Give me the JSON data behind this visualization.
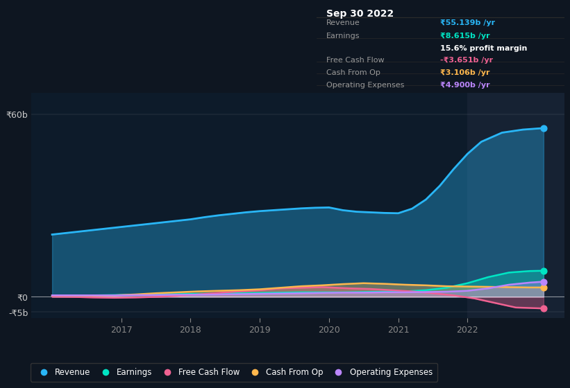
{
  "bg_color": "#0e1621",
  "chart_bg": "#0d1b2a",
  "highlight_bg": "#162233",
  "colors": {
    "revenue": "#29b6f6",
    "earnings": "#00e5c4",
    "fcf": "#f06292",
    "cash_from_op": "#ffb74d",
    "opex": "#bb86fc"
  },
  "tooltip": {
    "date": "Sep 30 2022",
    "revenue_label": "Revenue",
    "revenue_value": "₹55.139b /yr",
    "earnings_label": "Earnings",
    "earnings_value": "₹8.615b /yr",
    "margin_value": "15.6% profit margin",
    "fcf_label": "Free Cash Flow",
    "fcf_value": "-₹3.651b /yr",
    "cashfromop_label": "Cash From Op",
    "cashfromop_value": "₹3.106b /yr",
    "opex_label": "Operating Expenses",
    "opex_value": "₹4.900b /yr"
  },
  "y_label_60": "₹60b",
  "y_label_0": "₹0",
  "y_label_neg5": "-₹5b",
  "x_ticks": [
    2017,
    2018,
    2019,
    2020,
    2021,
    2022
  ],
  "ylim": [
    -7,
    67
  ],
  "xlim_start": 2015.7,
  "xlim_end": 2023.4,
  "legend": [
    {
      "label": "Revenue",
      "color": "#29b6f6"
    },
    {
      "label": "Earnings",
      "color": "#00e5c4"
    },
    {
      "label": "Free Cash Flow",
      "color": "#f06292"
    },
    {
      "label": "Cash From Op",
      "color": "#ffb74d"
    },
    {
      "label": "Operating Expenses",
      "color": "#bb86fc"
    }
  ],
  "revenue_x": [
    2016.0,
    2016.2,
    2016.4,
    2016.6,
    2016.8,
    2017.0,
    2017.2,
    2017.4,
    2017.6,
    2017.8,
    2018.0,
    2018.2,
    2018.4,
    2018.6,
    2018.8,
    2019.0,
    2019.2,
    2019.4,
    2019.6,
    2019.8,
    2020.0,
    2020.2,
    2020.4,
    2020.6,
    2020.8,
    2021.0,
    2021.2,
    2021.4,
    2021.6,
    2021.8,
    2022.0,
    2022.2,
    2022.5,
    2022.8,
    2023.1
  ],
  "revenue_y": [
    20.5,
    21.0,
    21.5,
    22.0,
    22.5,
    23.0,
    23.5,
    24.0,
    24.5,
    25.0,
    25.5,
    26.2,
    26.8,
    27.3,
    27.8,
    28.2,
    28.5,
    28.8,
    29.1,
    29.3,
    29.4,
    28.5,
    28.0,
    27.8,
    27.6,
    27.5,
    29.0,
    32.0,
    36.5,
    42.0,
    47.0,
    51.0,
    54.0,
    55.0,
    55.5
  ],
  "earnings_x": [
    2016.0,
    2016.3,
    2016.6,
    2016.9,
    2017.2,
    2017.5,
    2017.8,
    2018.1,
    2018.4,
    2018.7,
    2019.0,
    2019.3,
    2019.6,
    2019.9,
    2020.2,
    2020.5,
    2020.8,
    2021.1,
    2021.4,
    2021.7,
    2022.0,
    2022.3,
    2022.6,
    2022.9,
    2023.1
  ],
  "earnings_y": [
    0.3,
    0.4,
    0.5,
    0.6,
    0.7,
    0.8,
    0.9,
    1.0,
    1.1,
    1.2,
    1.3,
    1.4,
    1.5,
    1.5,
    1.5,
    1.6,
    1.7,
    1.8,
    2.2,
    3.0,
    4.5,
    6.5,
    8.0,
    8.5,
    8.6
  ],
  "fcf_x": [
    2016.0,
    2016.3,
    2016.6,
    2016.9,
    2017.2,
    2017.5,
    2017.8,
    2018.1,
    2018.4,
    2018.7,
    2019.0,
    2019.3,
    2019.6,
    2019.9,
    2020.0,
    2020.3,
    2020.6,
    2020.9,
    2021.2,
    2021.5,
    2021.8,
    2022.1,
    2022.4,
    2022.7,
    2023.1
  ],
  "fcf_y": [
    0.1,
    0.0,
    -0.2,
    -0.3,
    -0.2,
    0.0,
    0.3,
    0.8,
    1.3,
    1.8,
    2.2,
    2.8,
    3.0,
    3.2,
    3.1,
    2.8,
    2.6,
    2.2,
    1.8,
    1.2,
    0.5,
    -0.5,
    -2.0,
    -3.5,
    -3.8
  ],
  "cop_x": [
    2016.0,
    2016.3,
    2016.6,
    2016.9,
    2017.2,
    2017.5,
    2017.8,
    2018.1,
    2018.4,
    2018.7,
    2019.0,
    2019.3,
    2019.6,
    2019.9,
    2020.2,
    2020.5,
    2020.8,
    2021.1,
    2021.4,
    2021.7,
    2022.0,
    2022.3,
    2022.6,
    2022.9,
    2023.1
  ],
  "cop_y": [
    0.5,
    0.5,
    0.4,
    0.5,
    0.8,
    1.2,
    1.5,
    1.8,
    2.0,
    2.2,
    2.5,
    3.0,
    3.5,
    3.8,
    4.2,
    4.5,
    4.3,
    4.0,
    3.8,
    3.5,
    3.4,
    3.3,
    3.2,
    3.1,
    3.1
  ],
  "opex_x": [
    2016.0,
    2016.3,
    2016.6,
    2016.9,
    2017.2,
    2017.5,
    2017.8,
    2018.1,
    2018.4,
    2018.7,
    2019.0,
    2019.3,
    2019.6,
    2019.9,
    2020.2,
    2020.5,
    2020.8,
    2021.1,
    2021.4,
    2021.7,
    2022.0,
    2022.3,
    2022.6,
    2022.9,
    2023.1
  ],
  "opex_y": [
    0.5,
    0.5,
    0.5,
    0.5,
    0.6,
    0.6,
    0.7,
    0.7,
    0.8,
    0.9,
    1.0,
    1.1,
    1.2,
    1.3,
    1.4,
    1.4,
    1.5,
    1.5,
    1.6,
    1.7,
    2.0,
    2.8,
    4.0,
    4.7,
    5.0
  ],
  "highlight_x_start": 2022.0,
  "highlight_x_end": 2023.4
}
